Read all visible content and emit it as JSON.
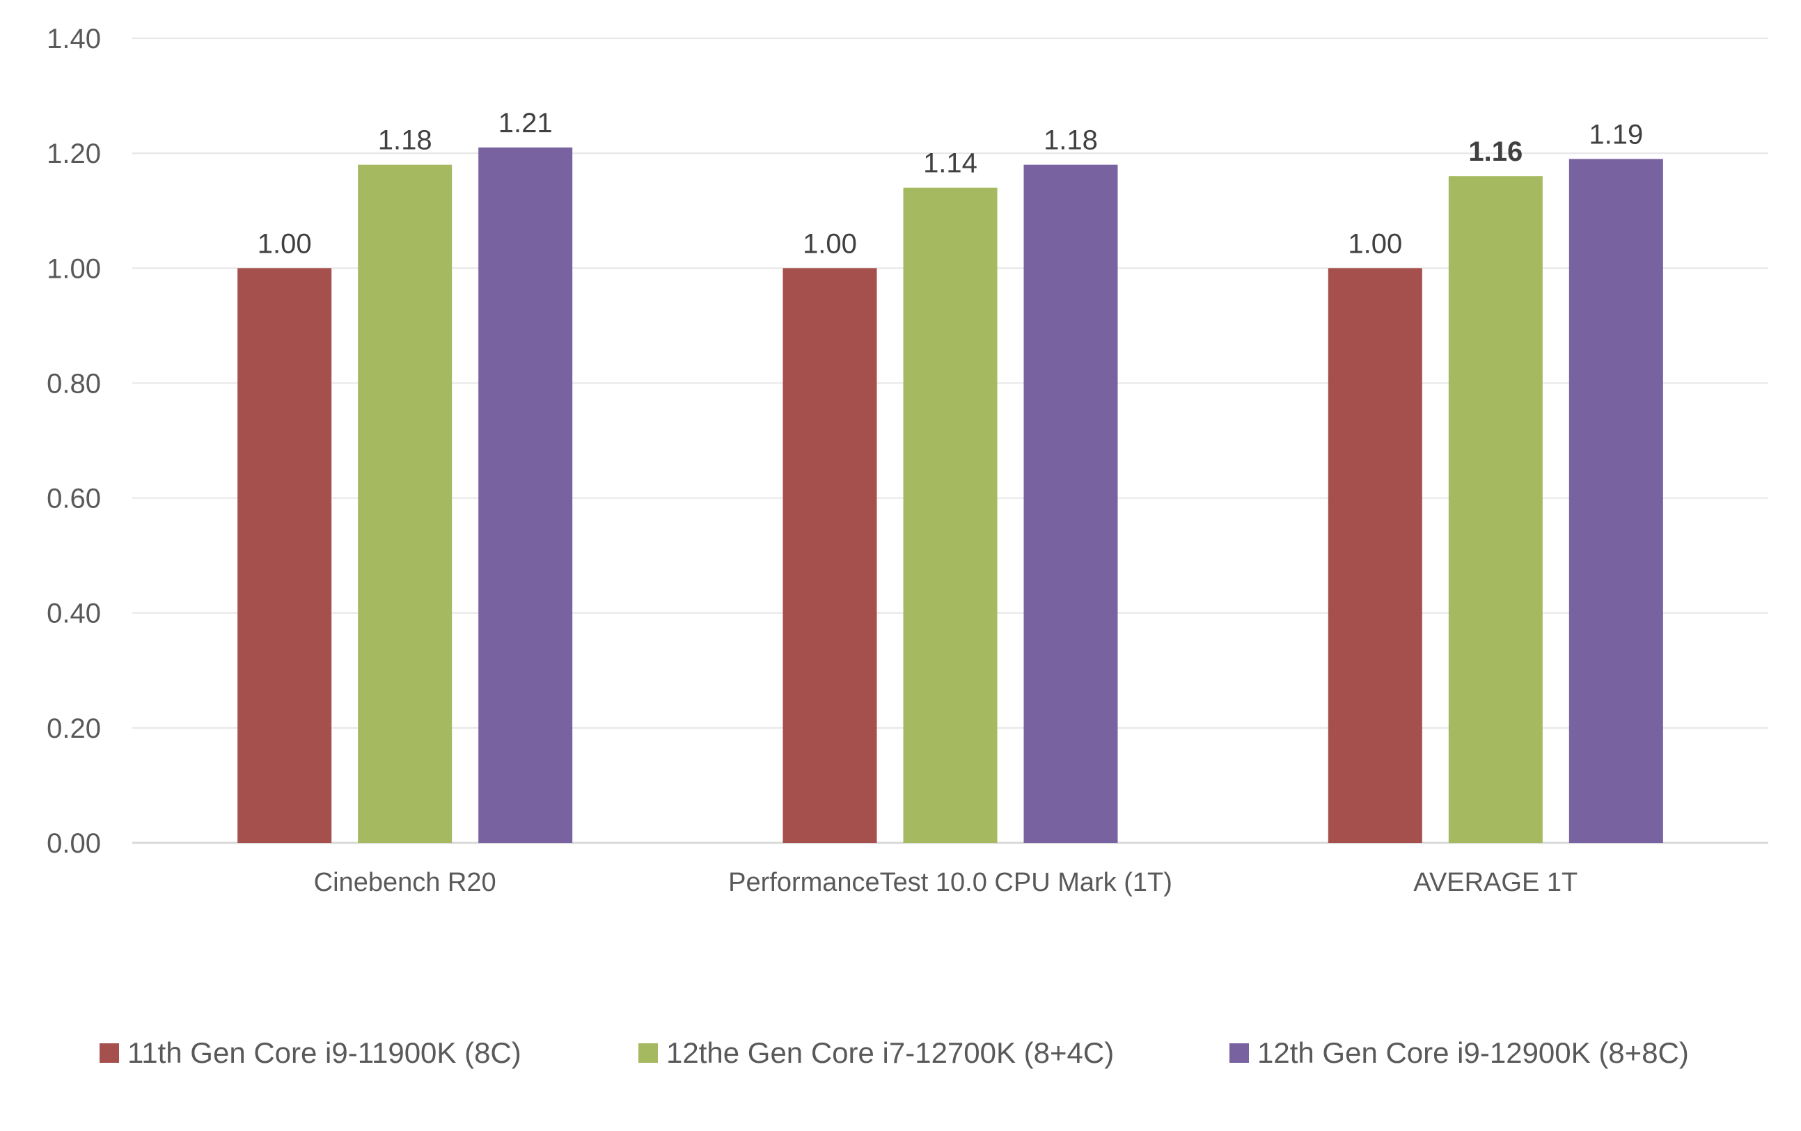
{
  "chart_data": {
    "type": "bar",
    "title": "",
    "xlabel": "",
    "ylabel": "",
    "ylim": [
      0,
      1.4
    ],
    "yticks": [
      "0.00",
      "0.20",
      "0.40",
      "0.60",
      "0.80",
      "1.00",
      "1.20",
      "1.40"
    ],
    "grid": true,
    "legend_position": "bottom",
    "categories": [
      "Cinebench R20",
      "PerformanceTest 10.0 CPU Mark (1T)",
      "AVERAGE 1T"
    ],
    "series": [
      {
        "name": "11th Gen Core i9-11900K (8C)",
        "color": "#a5504d",
        "values": [
          1.0,
          1.0,
          1.0
        ],
        "labels": [
          "1.00",
          "1.00",
          "1.00"
        ]
      },
      {
        "name": "12the Gen Core i7-12700K (8+4C)",
        "color": "#a4b960",
        "values": [
          1.18,
          1.14,
          1.16
        ],
        "labels": [
          "1.18",
          "1.14",
          "1.16"
        ],
        "bold_labels": [
          false,
          false,
          true
        ]
      },
      {
        "name": "12th Gen Core i9-12900K (8+8C)",
        "color": "#7862a0",
        "values": [
          1.21,
          1.18,
          1.19
        ],
        "labels": [
          "1.21",
          "1.18",
          "1.19"
        ]
      }
    ]
  }
}
